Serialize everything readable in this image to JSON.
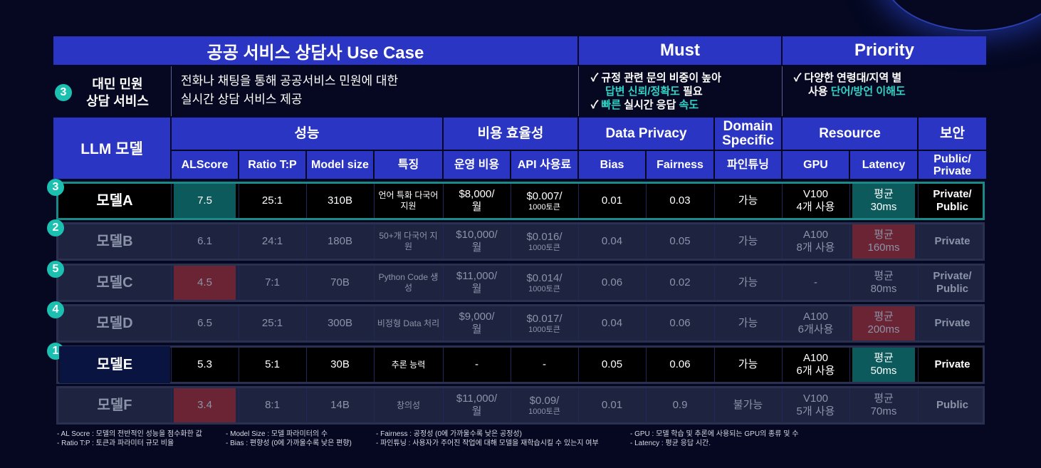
{
  "title": "공공 서비스 상담사 Use Case",
  "header_must": "Must",
  "header_priority": "Priority",
  "use_case": {
    "number": "3",
    "name_line1": "대민 민원",
    "name_line2": "상담 서비스",
    "desc_line1": "전화나 채팅을 통해 공공서비스 민원에 대한",
    "desc_line2": "실시간 상담 서비스 제공"
  },
  "must": {
    "check": "✓",
    "l1": "규정 관련 문의 비중이 높아",
    "l2_a": "답변 신뢰/정확도",
    "l2_b": " 필요",
    "l3_a": "빠른",
    "l3_b": " 실시간 응답 ",
    "l3_c": "속도"
  },
  "priority": {
    "check": "✓",
    "l1": "다양한 연령대/지역 별",
    "l2_a": "사용 ",
    "l2_b": "단어/방언 이해도"
  },
  "groups": {
    "llm": "LLM 모델",
    "perf": "성능",
    "cost": "비용 효율성",
    "privacy": "Data Privacy",
    "domain_1": "Domain",
    "domain_2": "Specific",
    "resource": "Resource",
    "security": "보안"
  },
  "subheaders": [
    "ALScore",
    "Ratio T:P",
    "Model size",
    "특징",
    "운영 비용",
    "API 사용료",
    "Bias",
    "Fairness",
    "파인튜닝",
    "GPU",
    "Latency",
    "Public/ Private"
  ],
  "rows": [
    {
      "rank": "3",
      "name": "모델A",
      "alscore": "7.5",
      "ratio": "25:1",
      "size": "310B",
      "feat": "언어 특화 다국어 지원",
      "op_a": "$8,000/",
      "op_b": "월",
      "api_a": "$0.007/",
      "api_b": "1000토큰",
      "bias": "0.01",
      "fair": "0.03",
      "ft": "가능",
      "gpu_a": "V100",
      "gpu_b": "4개 사용",
      "lat_a": "평균",
      "lat_b": "30ms",
      "sec": "Private/ Public"
    },
    {
      "rank": "2",
      "name": "모델B",
      "alscore": "6.1",
      "ratio": "24:1",
      "size": "180B",
      "feat": "50+개 다국어 지원",
      "op_a": "$10,000/",
      "op_b": "월",
      "api_a": "$0.016/",
      "api_b": "1000토큰",
      "bias": "0.04",
      "fair": "0.05",
      "ft": "가능",
      "gpu_a": "A100",
      "gpu_b": "8개 사용",
      "lat_a": "평균",
      "lat_b": "160ms",
      "sec": "Private"
    },
    {
      "rank": "5",
      "name": "모델C",
      "alscore": "4.5",
      "ratio": "7:1",
      "size": "70B",
      "feat": "Python Code 생성",
      "op_a": "$11,000/",
      "op_b": "월",
      "api_a": "$0.014/",
      "api_b": "1000토큰",
      "bias": "0.06",
      "fair": "0.02",
      "ft": "가능",
      "gpu_a": "-",
      "gpu_b": "",
      "lat_a": "평균",
      "lat_b": "80ms",
      "sec": "Private/ Public"
    },
    {
      "rank": "4",
      "name": "모델D",
      "alscore": "6.5",
      "ratio": "25:1",
      "size": "300B",
      "feat": "비정형 Data 처리",
      "op_a": "$9,000/",
      "op_b": "월",
      "api_a": "$0.017/",
      "api_b": "1000토큰",
      "bias": "0.04",
      "fair": "0.06",
      "ft": "가능",
      "gpu_a": "A100",
      "gpu_b": "6개사용",
      "lat_a": "평균",
      "lat_b": "200ms",
      "sec": "Private"
    },
    {
      "rank": "1",
      "name": "모델E",
      "alscore": "5.3",
      "ratio": "5:1",
      "size": "30B",
      "feat": "추론 능력",
      "op_a": "-",
      "op_b": "",
      "api_a": "-",
      "api_b": "",
      "bias": "0.05",
      "fair": "0.06",
      "ft": "가능",
      "gpu_a": "A100",
      "gpu_b": "6개 사용",
      "lat_a": "평균",
      "lat_b": "50ms",
      "sec": "Private"
    },
    {
      "rank": "",
      "name": "모델F",
      "alscore": "3.4",
      "ratio": "8:1",
      "size": "14B",
      "feat": "창의성",
      "op_a": "$11,000/",
      "op_b": "월",
      "api_a": "$0.09/",
      "api_b": "1000토큰",
      "bias": "0.01",
      "fair": "0.9",
      "ft": "불가능",
      "gpu_a": "V100",
      "gpu_b": "5개 사용",
      "lat_a": "평균",
      "lat_b": "70ms",
      "sec": "Public"
    }
  ],
  "colors": {
    "header_blue": "#2b35c4",
    "highlight_teal": "#0c5a5c",
    "warn_red": "#6b2433",
    "dim_row": "#1e2440",
    "best_row": "#081238"
  },
  "footnotes": {
    "c1_l1": "- AL Socre : 모델의 전반적인 성능을 점수화한 값",
    "c1_l2": "- Ratio T:P : 토큰과 파라미터 규모 비율",
    "c2_l1": "- Model Size : 모델 파라미터의 수",
    "c2_l2": "- Bias : 편향성 (0에 가까울수록 낮은 편향)",
    "c3_l1": "- Fairness : 공정성 (0에 가까울수록 낮은 공정성)",
    "c3_l2": "- 파인튜닝 : 사용자가 주어진 작업에 대해 모델을 재학습시킬 수 있는지 여부",
    "c4_l1": "- GPU : 모델 학습 및 추론에 사용되는 GPU의 종류 및 수",
    "c4_l2": "- Latency : 평균 응답 시간."
  }
}
